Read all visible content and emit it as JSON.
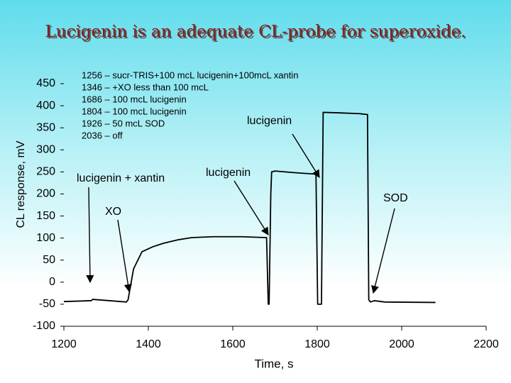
{
  "chart_data": {
    "type": "line",
    "title": "Lucigenin is an adequate CL-probe for superoxide.",
    "x_label": "Time, s",
    "y_label": "CL response, mV",
    "notes": [
      "1256 – sucr-TRIS+100 mcL lucigenin+100mcL xantin",
      "1346 – +XO less than 100 mcL",
      "1686 – 100 mcL lucigenin",
      "1804 – 100 mcL lucigenin",
      "1926 – 50 mcL SOD",
      "2036 – off"
    ],
    "annotations": [
      "lucigenin +  xantin",
      "XO",
      "lucigenin",
      "lucigenin",
      "SOD"
    ],
    "x": [
      1200,
      1265,
      1268,
      1348,
      1352,
      1365,
      1385,
      1410,
      1435,
      1470,
      1503,
      1553,
      1620,
      1680,
      1684,
      1686,
      1690,
      1692,
      1700,
      1750,
      1797,
      1801,
      1804,
      1810,
      1814,
      1850,
      1900,
      1919,
      1922,
      1926,
      1935,
      1960,
      2080
    ],
    "series": [
      {
        "color": "#000000",
        "values": [
          -44,
          -42,
          -39,
          -45,
          -40,
          30,
          69,
          80,
          88,
          96,
          101,
          103,
          103,
          101,
          -50,
          -50,
          200,
          250,
          252,
          248,
          245,
          -50,
          -50,
          -50,
          385,
          384,
          382,
          380,
          -40,
          -45,
          -42,
          -45,
          -46
        ]
      }
    ],
    "xlim": [
      1200,
      2200
    ],
    "xticks": [
      1200,
      1400,
      1600,
      1800,
      2000,
      2200
    ],
    "ylim": [
      -100,
      450
    ],
    "yticks": [
      -100,
      -50,
      0,
      50,
      100,
      150,
      200,
      250,
      300,
      350,
      400,
      450
    ]
  }
}
